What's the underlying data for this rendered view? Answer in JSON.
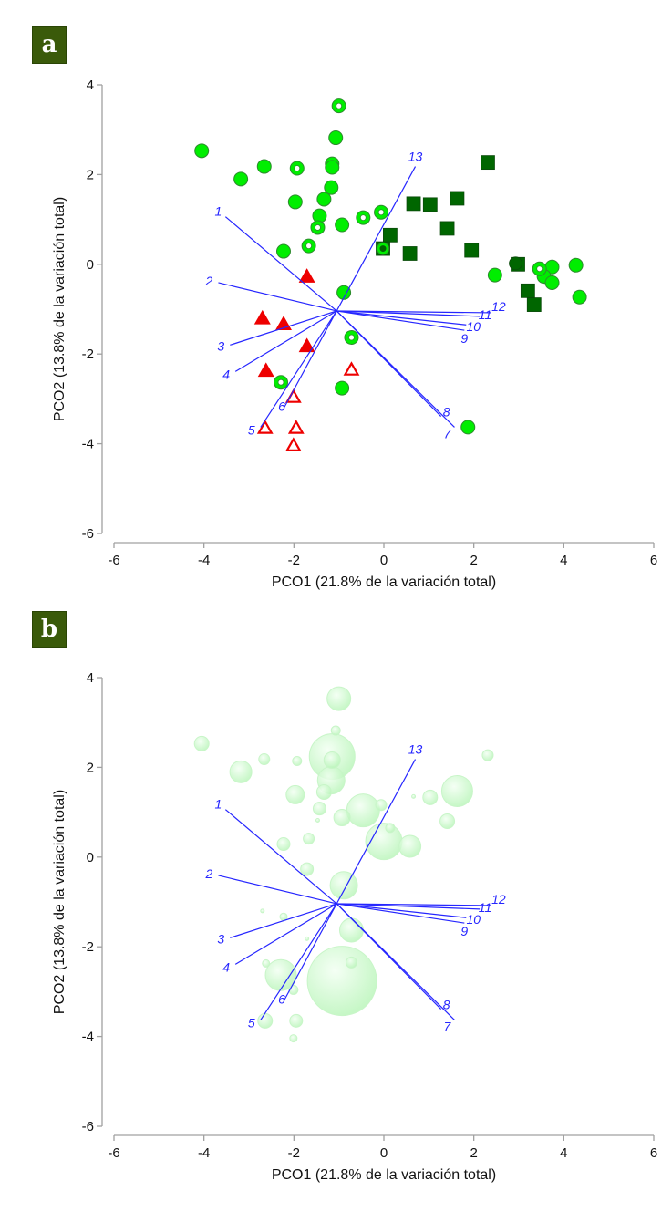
{
  "figure": {
    "panels": [
      "a",
      "b"
    ]
  },
  "colors": {
    "badge_bg": "#3a5a0a",
    "axis": "#a0a0a0",
    "vector": "#2626ff",
    "circle_fill": "#00ee00",
    "circle_stroke": "#2e8b2e",
    "square_fill": "#006600",
    "triangle": "#ee0000",
    "bubble": "#b8f5b8"
  },
  "chart_data": [
    {
      "type": "scatter",
      "panel": "a",
      "title": "",
      "xlabel": "PCO1 (21.8% de la variación total)",
      "ylabel": "PCO2 (13.8% de la variación total)",
      "xlim": [
        -6,
        6
      ],
      "ylim": [
        -6,
        4
      ],
      "xticks": [
        "-6",
        "-4",
        "-2",
        "0",
        "2",
        "4",
        "6"
      ],
      "yticks": [
        "-6",
        "-4",
        "-2",
        "0",
        "2",
        "4"
      ],
      "grid": false,
      "vector_origin": [
        -1.05,
        -1.04
      ],
      "vectors": [
        {
          "label": "1",
          "x": -3.52,
          "y": 1.06
        },
        {
          "label": "2",
          "x": -3.68,
          "y": -0.41
        },
        {
          "label": "3",
          "x": -3.42,
          "y": -1.8
        },
        {
          "label": "4",
          "x": -3.3,
          "y": -2.39
        },
        {
          "label": "5",
          "x": -2.74,
          "y": -3.63
        },
        {
          "label": "6",
          "x": -2.21,
          "y": -3.18
        },
        {
          "label": "7",
          "x": 1.57,
          "y": -3.63
        },
        {
          "label": "8",
          "x": 1.27,
          "y": -3.39
        },
        {
          "label": "9",
          "x": 1.79,
          "y": -1.47
        },
        {
          "label": "10",
          "x": 1.83,
          "y": -1.35
        },
        {
          "label": "11",
          "x": 2.13,
          "y": -1.16
        },
        {
          "label": "12",
          "x": 2.39,
          "y": -1.08
        },
        {
          "label": "13",
          "x": 0.7,
          "y": 2.18
        }
      ],
      "series": [
        {
          "name": "filled-circle",
          "marker": "circle",
          "points": [
            [
              -4.05,
              2.53
            ],
            [
              -3.18,
              1.9
            ],
            [
              -2.66,
              2.18
            ],
            [
              -1.07,
              2.82
            ],
            [
              -1.15,
              2.24
            ],
            [
              -1.15,
              2.16
            ],
            [
              -1.17,
              1.71
            ],
            [
              -1.33,
              1.45
            ],
            [
              -1.97,
              1.39
            ],
            [
              -1.43,
              1.08
            ],
            [
              -0.93,
              0.88
            ],
            [
              -2.23,
              0.29
            ],
            [
              2.47,
              -0.24
            ],
            [
              3.74,
              -0.06
            ],
            [
              3.56,
              -0.27
            ],
            [
              3.74,
              -0.41
            ],
            [
              4.27,
              -0.02
            ],
            [
              4.35,
              -0.73
            ],
            [
              -0.89,
              -0.63
            ],
            [
              -0.93,
              -2.76
            ],
            [
              1.87,
              -3.63
            ]
          ]
        },
        {
          "name": "ring-circle",
          "marker": "ring",
          "points": [
            [
              -1.0,
              3.53
            ],
            [
              -1.93,
              2.14
            ],
            [
              -1.47,
              0.82
            ],
            [
              -0.46,
              1.04
            ],
            [
              -0.06,
              1.16
            ],
            [
              -1.67,
              0.41
            ],
            [
              3.46,
              -0.1
            ],
            [
              -0.72,
              -1.63
            ],
            [
              -2.29,
              -2.63
            ]
          ]
        },
        {
          "name": "square",
          "marker": "square",
          "points": [
            [
              2.31,
              2.27
            ],
            [
              0.66,
              1.35
            ],
            [
              1.03,
              1.33
            ],
            [
              1.63,
              1.47
            ],
            [
              1.41,
              0.8
            ],
            [
              0.14,
              0.65
            ],
            [
              -0.02,
              0.35
            ],
            [
              0.58,
              0.24
            ],
            [
              1.95,
              0.31
            ],
            [
              2.98,
              0.0
            ],
            [
              3.2,
              -0.59
            ],
            [
              3.34,
              -0.9
            ]
          ]
        },
        {
          "name": "dark-ring",
          "marker": "dark-ring",
          "points": [
            [
              -0.02,
              0.35
            ]
          ]
        },
        {
          "name": "dark-circle",
          "marker": "dark-circle",
          "points": [
            [
              2.93,
              0.02
            ]
          ]
        },
        {
          "name": "filled-triangle",
          "marker": "triangle",
          "points": [
            [
              -1.71,
              -0.27
            ],
            [
              -2.7,
              -1.2
            ],
            [
              -2.23,
              -1.33
            ],
            [
              -1.71,
              -1.82
            ],
            [
              -2.62,
              -2.37
            ]
          ]
        },
        {
          "name": "open-triangle",
          "marker": "open-triangle",
          "points": [
            [
              -0.72,
              -2.35
            ],
            [
              -2.01,
              -2.96
            ],
            [
              -1.95,
              -3.65
            ],
            [
              -2.64,
              -3.65
            ],
            [
              -2.01,
              -4.04
            ]
          ]
        }
      ]
    },
    {
      "type": "scatter",
      "panel": "b",
      "title": "",
      "xlabel": "PCO1 (21.8% de la variación total)",
      "ylabel": "PCO2 (13.8% de la variación total)",
      "xlim": [
        -6,
        6
      ],
      "ylim": [
        -6,
        4
      ],
      "xticks": [
        "-6",
        "-4",
        "-2",
        "0",
        "2",
        "4",
        "6"
      ],
      "yticks": [
        "-6",
        "-4",
        "-2",
        "0",
        "2",
        "4"
      ],
      "grid": false,
      "vector_origin": [
        -1.05,
        -1.04
      ],
      "vectors": [
        {
          "label": "1",
          "x": -3.52,
          "y": 1.06
        },
        {
          "label": "2",
          "x": -3.68,
          "y": -0.41
        },
        {
          "label": "3",
          "x": -3.42,
          "y": -1.8
        },
        {
          "label": "4",
          "x": -3.3,
          "y": -2.39
        },
        {
          "label": "5",
          "x": -2.74,
          "y": -3.63
        },
        {
          "label": "6",
          "x": -2.21,
          "y": -3.18
        },
        {
          "label": "7",
          "x": 1.57,
          "y": -3.63
        },
        {
          "label": "8",
          "x": 1.27,
          "y": -3.39
        },
        {
          "label": "9",
          "x": 1.79,
          "y": -1.47
        },
        {
          "label": "10",
          "x": 1.83,
          "y": -1.35
        },
        {
          "label": "11",
          "x": 2.13,
          "y": -1.16
        },
        {
          "label": "12",
          "x": 2.39,
          "y": -1.08
        },
        {
          "label": "13",
          "x": 0.7,
          "y": 2.18
        }
      ],
      "bubble_size_note": "relative size values (arbitrary units)",
      "bubbles": [
        {
          "x": -1.0,
          "y": 3.53,
          "size": 13
        },
        {
          "x": -1.07,
          "y": 2.82,
          "size": 5
        },
        {
          "x": -1.15,
          "y": 2.24,
          "size": 25
        },
        {
          "x": -1.15,
          "y": 2.16,
          "size": 9
        },
        {
          "x": -1.17,
          "y": 1.71,
          "size": 15
        },
        {
          "x": -1.33,
          "y": 1.45,
          "size": 8
        },
        {
          "x": -4.05,
          "y": 2.53,
          "size": 8
        },
        {
          "x": -3.18,
          "y": 1.9,
          "size": 12
        },
        {
          "x": -2.66,
          "y": 2.18,
          "size": 6
        },
        {
          "x": -1.93,
          "y": 2.14,
          "size": 5
        },
        {
          "x": -1.97,
          "y": 1.39,
          "size": 10
        },
        {
          "x": -1.43,
          "y": 1.08,
          "size": 7
        },
        {
          "x": -1.47,
          "y": 0.82,
          "size": 2
        },
        {
          "x": -0.93,
          "y": 0.88,
          "size": 9
        },
        {
          "x": -0.46,
          "y": 1.04,
          "size": 18
        },
        {
          "x": -0.06,
          "y": 1.16,
          "size": 6
        },
        {
          "x": 0.0,
          "y": 0.35,
          "size": 20
        },
        {
          "x": 0.14,
          "y": 0.65,
          "size": 5
        },
        {
          "x": 0.58,
          "y": 0.24,
          "size": 12
        },
        {
          "x": -2.23,
          "y": 0.29,
          "size": 7
        },
        {
          "x": -1.67,
          "y": 0.41,
          "size": 6
        },
        {
          "x": 2.31,
          "y": 2.27,
          "size": 6
        },
        {
          "x": 1.63,
          "y": 1.47,
          "size": 17
        },
        {
          "x": 1.03,
          "y": 1.33,
          "size": 8
        },
        {
          "x": 0.66,
          "y": 1.35,
          "size": 2
        },
        {
          "x": 1.41,
          "y": 0.8,
          "size": 8
        },
        {
          "x": -1.71,
          "y": -0.27,
          "size": 7
        },
        {
          "x": -0.89,
          "y": -0.63,
          "size": 15
        },
        {
          "x": -2.7,
          "y": -1.2,
          "size": 2
        },
        {
          "x": -2.23,
          "y": -1.33,
          "size": 4
        },
        {
          "x": -0.72,
          "y": -1.63,
          "size": 13
        },
        {
          "x": -1.71,
          "y": -1.82,
          "size": 2
        },
        {
          "x": -2.62,
          "y": -2.37,
          "size": 4
        },
        {
          "x": -2.29,
          "y": -2.63,
          "size": 17
        },
        {
          "x": -0.72,
          "y": -2.35,
          "size": 6
        },
        {
          "x": -0.93,
          "y": -2.76,
          "size": 38
        },
        {
          "x": -2.01,
          "y": -2.96,
          "size": 5
        },
        {
          "x": -1.95,
          "y": -3.65,
          "size": 7
        },
        {
          "x": -2.64,
          "y": -3.65,
          "size": 8
        },
        {
          "x": -2.01,
          "y": -4.04,
          "size": 4
        }
      ]
    }
  ]
}
